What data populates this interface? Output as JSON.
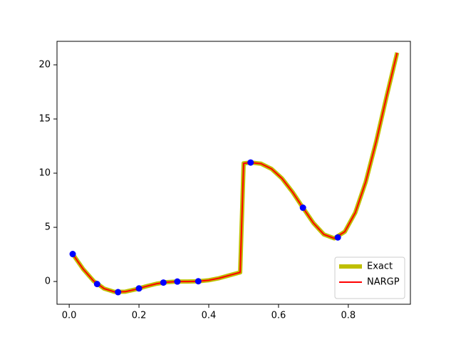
{
  "chart_data": {
    "type": "line",
    "x": [
      0.01,
      0.04,
      0.07,
      0.1,
      0.13,
      0.16,
      0.19,
      0.22,
      0.25,
      0.28,
      0.31,
      0.34,
      0.37,
      0.4,
      0.43,
      0.46,
      0.49,
      0.5,
      0.52,
      0.55,
      0.58,
      0.61,
      0.64,
      0.67,
      0.7,
      0.73,
      0.76,
      0.79,
      0.82,
      0.85,
      0.88,
      0.91,
      0.94
    ],
    "series": [
      {
        "name": "Exact",
        "color": "#bfbf00",
        "values": [
          2.533,
          1.144,
          0.046,
          -0.657,
          -0.961,
          -0.944,
          -0.731,
          -0.452,
          -0.21,
          -0.061,
          -0.005,
          0.0,
          0.021,
          0.115,
          0.308,
          0.577,
          0.842,
          10.909,
          10.984,
          10.871,
          10.394,
          9.511,
          8.263,
          6.81,
          5.394,
          4.341,
          3.982,
          4.598,
          6.354,
          9.201,
          12.94,
          17.118,
          21.122
        ]
      },
      {
        "name": "NARGP",
        "color": "#ff0000",
        "values": [
          2.533,
          1.144,
          0.046,
          -0.657,
          -0.961,
          -0.944,
          -0.731,
          -0.452,
          -0.21,
          -0.061,
          -0.005,
          0.0,
          0.021,
          0.115,
          0.308,
          0.577,
          0.842,
          10.909,
          10.984,
          10.871,
          10.394,
          9.511,
          8.263,
          6.81,
          5.394,
          4.341,
          3.982,
          4.598,
          6.354,
          9.201,
          12.94,
          17.118,
          21.122
        ]
      }
    ],
    "points": {
      "color": "#0000ff",
      "x": [
        0.01,
        0.08,
        0.14,
        0.2,
        0.27,
        0.31,
        0.37,
        0.52,
        0.67,
        0.77
      ],
      "values": [
        2.533,
        -0.234,
        -0.983,
        -0.64,
        -0.099,
        -0.005,
        0.021,
        10.984,
        6.81,
        4.066
      ]
    },
    "xlim": [
      -0.035,
      0.978
    ],
    "ylim": [
      -2.1,
      22.17
    ],
    "xticks": [
      {
        "value": 0,
        "label": "0.0"
      },
      0.2,
      0.4,
      0.6,
      0.8
    ],
    "yticks": [
      0,
      5,
      10,
      15,
      20
    ],
    "legend": "lower right"
  }
}
